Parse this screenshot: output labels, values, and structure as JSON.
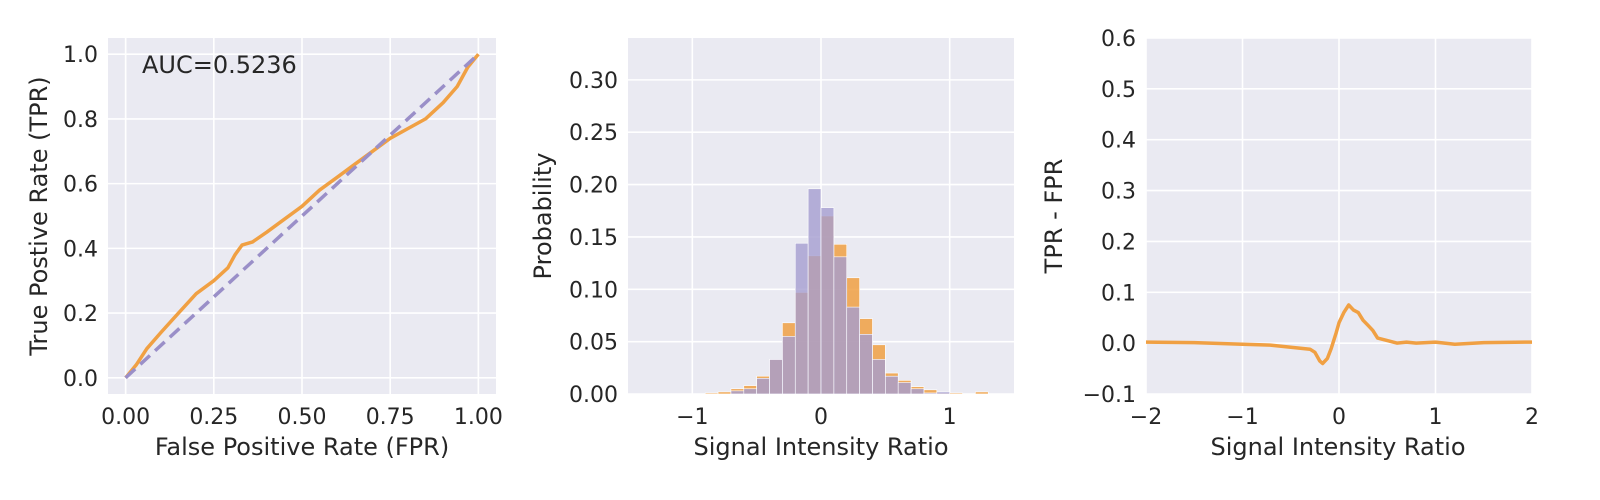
{
  "chart_data": [
    {
      "type": "line",
      "xlabel": "False Positive Rate (FPR)",
      "ylabel": "True Postive Rate (TPR)",
      "xlim": [
        -0.05,
        1.05
      ],
      "ylim": [
        -0.05,
        1.05
      ],
      "xticks": [
        0.0,
        0.25,
        0.5,
        0.75,
        1.0
      ],
      "xtick_labels": [
        "0.00",
        "0.25",
        "0.50",
        "0.75",
        "1.00"
      ],
      "yticks": [
        0.0,
        0.2,
        0.4,
        0.6,
        0.8,
        1.0
      ],
      "ytick_labels": [
        "0.0",
        "0.2",
        "0.4",
        "0.6",
        "0.8",
        "1.0"
      ],
      "grid": true,
      "annotation": "AUC=0.5236",
      "series": [
        {
          "role": "roc",
          "color": "#f0a043",
          "style": "solid",
          "x": [
            0.0,
            0.03,
            0.06,
            0.1,
            0.15,
            0.2,
            0.25,
            0.29,
            0.31,
            0.33,
            0.36,
            0.4,
            0.45,
            0.5,
            0.55,
            0.6,
            0.65,
            0.7,
            0.75,
            0.8,
            0.85,
            0.9,
            0.94,
            0.97,
            1.0
          ],
          "y": [
            0.0,
            0.04,
            0.09,
            0.14,
            0.2,
            0.26,
            0.3,
            0.34,
            0.38,
            0.41,
            0.42,
            0.45,
            0.49,
            0.53,
            0.58,
            0.62,
            0.66,
            0.7,
            0.74,
            0.77,
            0.8,
            0.85,
            0.9,
            0.96,
            1.0
          ]
        },
        {
          "role": "chance",
          "color": "#9a8fc8",
          "style": "dashed",
          "x": [
            0.0,
            1.0
          ],
          "y": [
            0.0,
            1.0
          ]
        }
      ]
    },
    {
      "type": "bar",
      "xlabel": "Signal Intensity Ratio",
      "ylabel": "Probability",
      "xlim": [
        -1.5,
        1.5
      ],
      "ylim": [
        0,
        0.34
      ],
      "xticks": [
        -1,
        0,
        1
      ],
      "xtick_labels": [
        "−1",
        "0",
        "1"
      ],
      "yticks": [
        0.0,
        0.05,
        0.1,
        0.15,
        0.2,
        0.25,
        0.3
      ],
      "ytick_labels": [
        "0.00",
        "0.05",
        "0.10",
        "0.15",
        "0.20",
        "0.25",
        "0.30"
      ],
      "grid": true,
      "bin_width": 0.1,
      "series": [
        {
          "color": "#f0a043",
          "bin_starts": [
            -1.0,
            -0.9,
            -0.8,
            -0.7,
            -0.6,
            -0.5,
            -0.4,
            -0.3,
            -0.2,
            -0.1,
            0.0,
            0.1,
            0.2,
            0.3,
            0.4,
            0.5,
            0.6,
            0.7,
            0.8,
            0.9,
            1.0,
            1.1,
            1.2
          ],
          "values": [
            0.0,
            0.001,
            0.002,
            0.005,
            0.008,
            0.017,
            0.033,
            0.068,
            0.097,
            0.132,
            0.17,
            0.143,
            0.111,
            0.072,
            0.047,
            0.02,
            0.013,
            0.007,
            0.004,
            0.001,
            0.001,
            0.0,
            0.002
          ]
        },
        {
          "color": "#a59ed0",
          "bin_starts": [
            -1.0,
            -0.9,
            -0.8,
            -0.7,
            -0.6,
            -0.5,
            -0.4,
            -0.3,
            -0.2,
            -0.1,
            0.0,
            0.1,
            0.2,
            0.3,
            0.4,
            0.5,
            0.6,
            0.7,
            0.8,
            0.9,
            1.0,
            1.1,
            1.2
          ],
          "values": [
            0.0,
            0.0,
            0.0,
            0.003,
            0.005,
            0.015,
            0.033,
            0.055,
            0.144,
            0.196,
            0.178,
            0.131,
            0.083,
            0.057,
            0.033,
            0.017,
            0.011,
            0.005,
            0.001,
            0.002,
            0.0,
            0.0,
            0.0
          ]
        }
      ]
    },
    {
      "type": "line",
      "xlabel": "Signal Intensity Ratio",
      "ylabel": "TPR - FPR",
      "xlim": [
        -2,
        2
      ],
      "ylim": [
        -0.1,
        0.6
      ],
      "xticks": [
        -2,
        -1,
        0,
        1,
        2
      ],
      "xtick_labels": [
        "−2",
        "−1",
        "0",
        "1",
        "2"
      ],
      "yticks": [
        -0.1,
        0.0,
        0.1,
        0.2,
        0.3,
        0.4,
        0.5,
        0.6
      ],
      "ytick_labels": [
        "−0.1",
        "0.0",
        "0.1",
        "0.2",
        "0.3",
        "0.4",
        "0.5",
        "0.6"
      ],
      "grid": true,
      "series": [
        {
          "color": "#f0a043",
          "style": "solid",
          "x": [
            -2.0,
            -1.5,
            -1.0,
            -0.7,
            -0.5,
            -0.4,
            -0.3,
            -0.25,
            -0.2,
            -0.17,
            -0.12,
            -0.08,
            -0.03,
            0.0,
            0.05,
            0.1,
            0.15,
            0.2,
            0.25,
            0.3,
            0.35,
            0.4,
            0.5,
            0.6,
            0.7,
            0.8,
            1.0,
            1.2,
            1.5,
            2.0
          ],
          "y": [
            0.002,
            0.001,
            -0.002,
            -0.004,
            -0.008,
            -0.01,
            -0.012,
            -0.018,
            -0.035,
            -0.04,
            -0.03,
            -0.01,
            0.02,
            0.04,
            0.06,
            0.075,
            0.065,
            0.06,
            0.045,
            0.035,
            0.025,
            0.01,
            0.005,
            0.0,
            0.002,
            0.0,
            0.002,
            -0.002,
            0.001,
            0.002
          ]
        }
      ]
    }
  ]
}
